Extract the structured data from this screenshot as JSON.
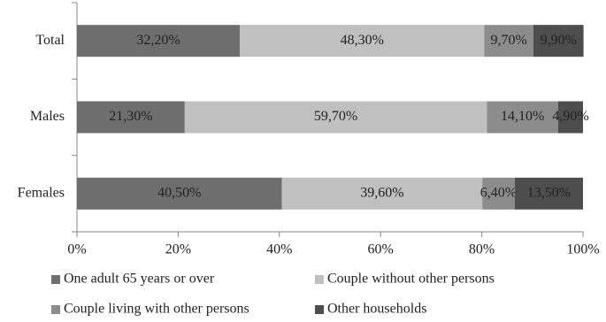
{
  "chart_data": {
    "type": "stacked-bar-horizontal",
    "categories": [
      "Total",
      "Males",
      "Females"
    ],
    "series": [
      {
        "name": "One adult 65 years or over",
        "color": "#6e6e6e",
        "values": [
          32.2,
          21.3,
          40.5
        ],
        "value_labels": [
          "32,20%",
          "21,30%",
          "40,50%"
        ]
      },
      {
        "name": "Couple without other persons",
        "color": "#c0c0c0",
        "values": [
          48.3,
          59.7,
          39.6
        ],
        "value_labels": [
          "48,30%",
          "59,70%",
          "39,60%"
        ]
      },
      {
        "name": "Couple living with other persons",
        "color": "#8c8c8c",
        "values": [
          9.7,
          14.1,
          6.4
        ],
        "value_labels": [
          "9,70%",
          "14,10%",
          "6,40%"
        ]
      },
      {
        "name": "Other households",
        "color": "#4d4d4d",
        "values": [
          9.9,
          4.9,
          13.5
        ],
        "value_labels": [
          "9,90%",
          "4,90%",
          "13,50%"
        ]
      }
    ],
    "xlim": [
      0,
      100
    ],
    "xticks": [
      {
        "value": 0,
        "label": "0%"
      },
      {
        "value": 20,
        "label": "20%"
      },
      {
        "value": 40,
        "label": "40%"
      },
      {
        "value": 60,
        "label": "60%"
      },
      {
        "value": 80,
        "label": "80%"
      },
      {
        "value": 100,
        "label": "100%"
      }
    ]
  }
}
